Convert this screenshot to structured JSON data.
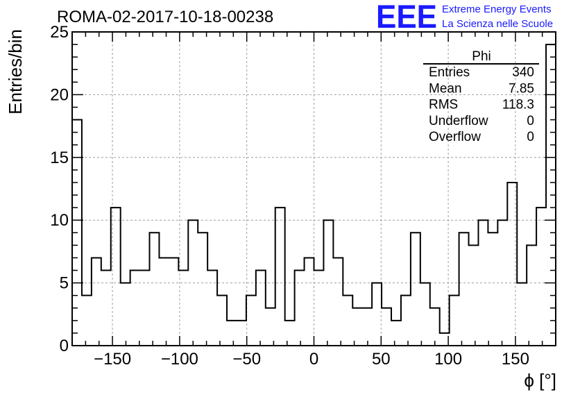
{
  "colors": {
    "logo": "#1a1aff",
    "grid": "#9e9e9e",
    "line": "#000000"
  },
  "logo": {
    "mark": "EEE",
    "line1": "Extreme Energy Events",
    "line2": "La Scienza nelle Scuole"
  },
  "stats": {
    "title": "Phi",
    "rows": [
      {
        "label": "Entries",
        "value": "340"
      },
      {
        "label": "Mean",
        "value": "7.85"
      },
      {
        "label": "RMS",
        "value": "118.3"
      },
      {
        "label": "Underflow",
        "value": "0"
      },
      {
        "label": "Overflow",
        "value": "0"
      }
    ]
  },
  "chart_data": {
    "type": "bar",
    "style": "step-histogram",
    "title": "ROMA-02-2017-10-18-00238",
    "xlabel": "ϕ [°]",
    "ylabel": "Entries/bin",
    "xlim": [
      -180,
      180
    ],
    "ylim": [
      0,
      25
    ],
    "bin_width": 7.2,
    "bin_edges_start": -180,
    "values": [
      18,
      4,
      7,
      6,
      11,
      5,
      6,
      6,
      9,
      7,
      7,
      6,
      10,
      9,
      6,
      4,
      2,
      2,
      4,
      6,
      3,
      11,
      2,
      6,
      7,
      6,
      10,
      7,
      4,
      3,
      3,
      5,
      3,
      2,
      4,
      9,
      5,
      3,
      1,
      4,
      9,
      8,
      10,
      9,
      10,
      13,
      5,
      8,
      11,
      24
    ],
    "x_ticks": [
      -150,
      -100,
      -50,
      0,
      50,
      100,
      150
    ],
    "x_tick_labels": [
      "−150",
      "−100",
      "−50",
      "0",
      "50",
      "100",
      "150"
    ],
    "y_ticks": [
      0,
      5,
      10,
      15,
      20,
      25
    ],
    "y_tick_labels": [
      "0",
      "5",
      "10",
      "15",
      "20",
      "25"
    ],
    "grid": true,
    "legend": "none"
  }
}
